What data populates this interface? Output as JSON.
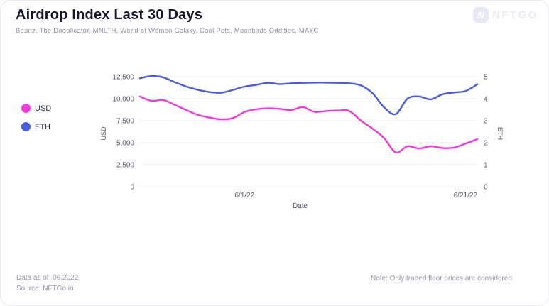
{
  "header": {
    "title": "Airdrop Index Last 30 Days",
    "subtitle": "Beanz, The Dooplicator, MNLTH, World of Women Galaxy, Cool Pets, Moonbirds Oddities, MAYC",
    "brand": {
      "name": "NFTGO",
      "icon_letter": "N"
    }
  },
  "legend": [
    {
      "label": "USD",
      "color": "#ee3ada"
    },
    {
      "label": "ETH",
      "color": "#4a5be4"
    }
  ],
  "chart_data": {
    "type": "line",
    "title": "Airdrop Index Last 30 Days",
    "xlabel": "Date",
    "grid": "horizontal",
    "legend_position": "left",
    "dates": [
      "5/23/22",
      "5/24/22",
      "5/25/22",
      "5/26/22",
      "5/27/22",
      "5/28/22",
      "5/29/22",
      "5/30/22",
      "5/31/22",
      "6/1/22",
      "6/2/22",
      "6/3/22",
      "6/4/22",
      "6/5/22",
      "6/6/22",
      "6/7/22",
      "6/8/22",
      "6/9/22",
      "6/10/22",
      "6/11/22",
      "6/12/22",
      "6/13/22",
      "6/14/22",
      "6/15/22",
      "6/16/22",
      "6/17/22",
      "6/18/22",
      "6/19/22",
      "6/20/22",
      "6/21/22"
    ],
    "x_ticks": [
      {
        "label": "6/1/22",
        "pos": 9,
        "anchor": "middle"
      },
      {
        "label": "6/21/22",
        "pos": 29,
        "anchor": "end"
      }
    ],
    "series": [
      {
        "name": "USD",
        "axis": "left",
        "color": "#ee3ada",
        "values": [
          10250,
          9750,
          9850,
          9300,
          8700,
          8150,
          7850,
          7650,
          7800,
          8500,
          8800,
          8900,
          8850,
          8700,
          9050,
          8500,
          8600,
          8650,
          8600,
          7500,
          6600,
          5500,
          3900,
          4600,
          4350,
          4600,
          4400,
          4450,
          4900,
          5400
        ]
      },
      {
        "name": "ETH",
        "axis": "right",
        "color": "#4a5be4",
        "values": [
          4.93,
          5.03,
          4.97,
          4.75,
          4.55,
          4.4,
          4.3,
          4.27,
          4.4,
          4.55,
          4.63,
          4.72,
          4.66,
          4.7,
          4.72,
          4.73,
          4.73,
          4.72,
          4.7,
          4.6,
          4.25,
          3.6,
          3.3,
          4.0,
          4.1,
          3.97,
          4.2,
          4.28,
          4.35,
          4.65
        ]
      }
    ],
    "left_axis": {
      "label": "USD",
      "ticks": [
        "0",
        "2,500",
        "5,000",
        "7,500",
        "10,000",
        "12,500"
      ],
      "tick_values": [
        0,
        2500,
        5000,
        7500,
        10000,
        12500
      ],
      "max": 12500
    },
    "right_axis": {
      "label": "ETH",
      "ticks": [
        "0",
        "1",
        "2",
        "3",
        "4",
        "5"
      ],
      "tick_values": [
        0,
        1,
        2,
        3,
        4,
        5
      ],
      "max": 5
    }
  },
  "footer": {
    "data_as_of": "Data as of: 06.2022",
    "source": "Source: NFTGo.io",
    "note": "Note: Only traded floor prices are considered"
  },
  "colors": {
    "usd_line": "#ee3ada",
    "eth_line": "#4a5be4",
    "grid": "#ededf2",
    "axis_text": "#55576a",
    "muted_text": "#9496a8",
    "title_text": "#15162b",
    "watermark": "#e9eaf2"
  }
}
